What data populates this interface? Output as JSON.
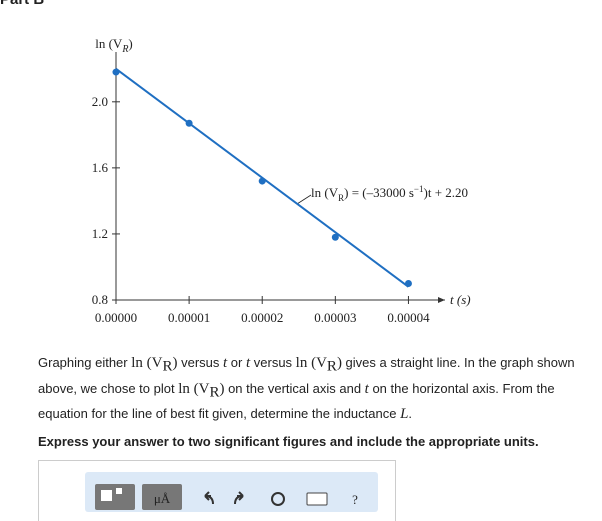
{
  "header": {
    "title": "Part B"
  },
  "chart_data": {
    "type": "scatter",
    "y_label": {
      "text": "ln (V",
      "sub": "R",
      "end": ")"
    },
    "x_label": "t (s)",
    "annotation": [
      "ln (V",
      "R",
      ") = (–33000 s",
      "−1",
      ")t + 2.20"
    ],
    "x": [
      0,
      1e-05,
      2e-05,
      3e-05,
      4e-05
    ],
    "values": [
      2.18,
      1.87,
      1.52,
      1.18,
      0.9
    ],
    "color": "#1f6fc2",
    "fit": {
      "x": [
        0,
        4e-05
      ],
      "values": [
        2.2,
        0.88
      ],
      "color": "#1f6fc2"
    },
    "xlim": [
      0,
      4.5e-05
    ],
    "ylim": [
      0.8,
      2.35
    ],
    "xticks": [
      {
        "value": 0,
        "label": "0.00000"
      },
      1e-05,
      2e-05,
      3e-05,
      4e-05
    ],
    "yticks": [
      0.8,
      1.2,
      1.6,
      {
        "value": 2,
        "label": "2.0"
      }
    ]
  },
  "question": {
    "parts": [
      "Graphing either ",
      "ln (V",
      "R",
      ")",
      " versus ",
      "t",
      " or ",
      "t",
      " versus ",
      "ln (V",
      "R",
      ")",
      " gives a straight line. In the graph shown above, we chose to plot ",
      "ln (V",
      "R",
      ")",
      " on the vertical axis and ",
      "t",
      " on the horizontal axis. From the equation for the line of best fit given, determine the inductance ",
      "L",
      "."
    ],
    "instruction": "Express your answer to two significant figures and include the appropriate units."
  },
  "toolbar": {
    "units": "μÅ",
    "help": "?"
  }
}
